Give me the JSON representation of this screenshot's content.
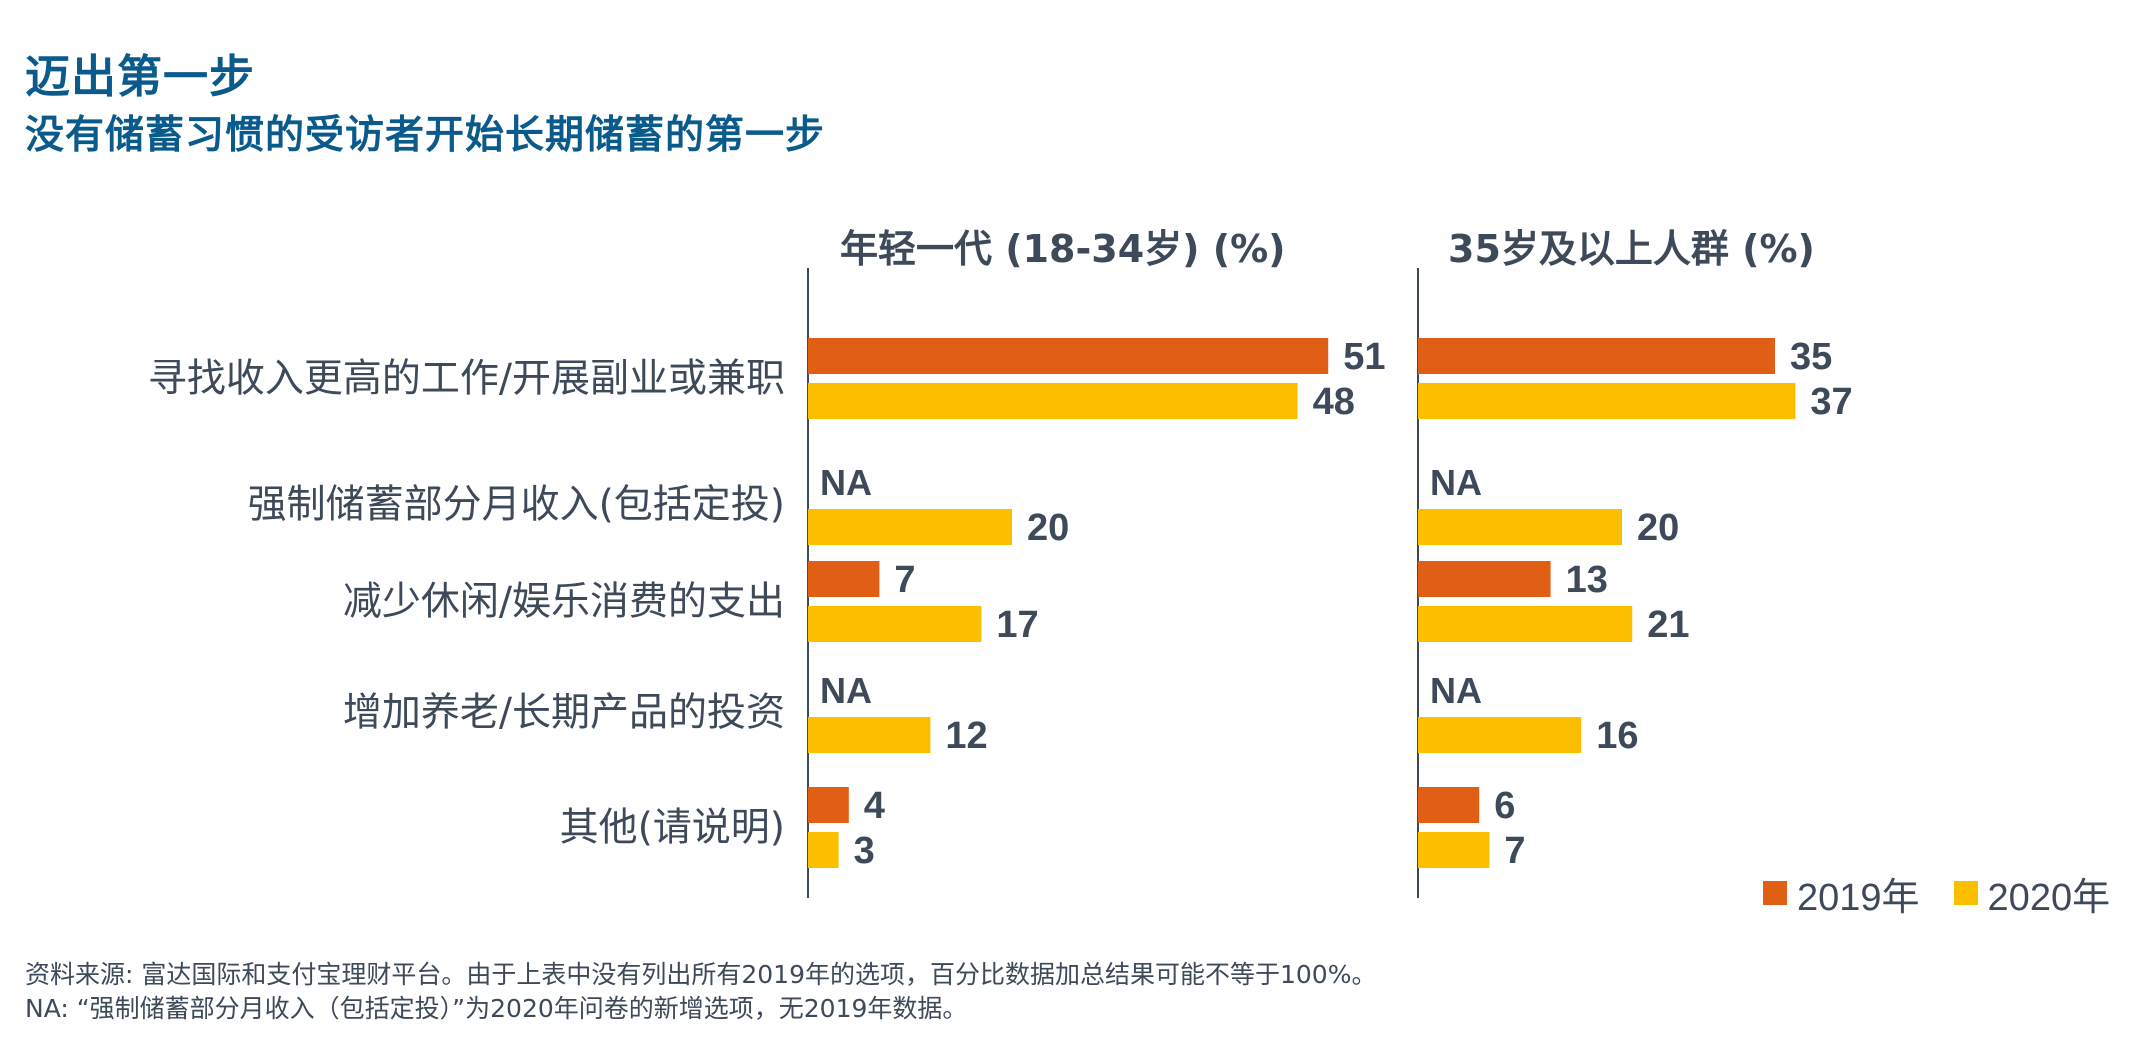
{
  "header": {
    "title": "迈出第一步",
    "subtitle": "没有储蓄习惯的受访者开始长期储蓄的第一步"
  },
  "legend": [
    {
      "label": "2019年",
      "color": "#e05f14"
    },
    {
      "label": "2020年",
      "color": "#fbbf00"
    }
  ],
  "footnotes": {
    "source": "资料来源: 富达国际和支付宝理财平台。由于上表中没有列出所有2019年的选项，百分比数据加总结果可能不等于100%。",
    "na_note": "NA: “强制储蓄部分月收入（包括定投）”为2020年问卷的新增选项，无2019年数据。"
  },
  "chart_data": [
    {
      "type": "bar",
      "orientation": "horizontal",
      "title": "年轻一代 (18-34岁) (%)",
      "categories": [
        "寻找收入更高的工作/开展副业或兼职",
        "强制储蓄部分月收入(包括定投)",
        "减少休闲/娱乐消费的支出",
        "增加养老/长期产品的投资",
        "其他(请说明)"
      ],
      "series": [
        {
          "name": "2019年",
          "color": "#e05f14",
          "values": [
            51,
            null,
            7,
            null,
            4
          ],
          "labels": [
            "51",
            "NA",
            "7",
            "NA",
            "4"
          ]
        },
        {
          "name": "2020年",
          "color": "#fbbf00",
          "values": [
            48,
            20,
            17,
            12,
            3
          ],
          "labels": [
            "48",
            "20",
            "17",
            "12",
            "3"
          ]
        }
      ],
      "xlim": [
        0,
        60
      ],
      "grid": false,
      "legend_position": "bottom-right"
    },
    {
      "type": "bar",
      "orientation": "horizontal",
      "title": "35岁及以上人群 (%)",
      "categories": [
        "寻找收入更高的工作/开展副业或兼职",
        "强制储蓄部分月收入(包括定投)",
        "减少休闲/娱乐消费的支出",
        "增加养老/长期产品的投资",
        "其他(请说明)"
      ],
      "series": [
        {
          "name": "2019年",
          "color": "#e05f14",
          "values": [
            35,
            null,
            13,
            null,
            6
          ],
          "labels": [
            "35",
            "NA",
            "13",
            "NA",
            "6"
          ]
        },
        {
          "name": "2020年",
          "color": "#fbbf00",
          "values": [
            37,
            20,
            21,
            16,
            7
          ],
          "labels": [
            "37",
            "20",
            "21",
            "16",
            "7"
          ]
        }
      ],
      "xlim": [
        0,
        60
      ],
      "grid": false,
      "legend_position": "bottom-right"
    }
  ]
}
